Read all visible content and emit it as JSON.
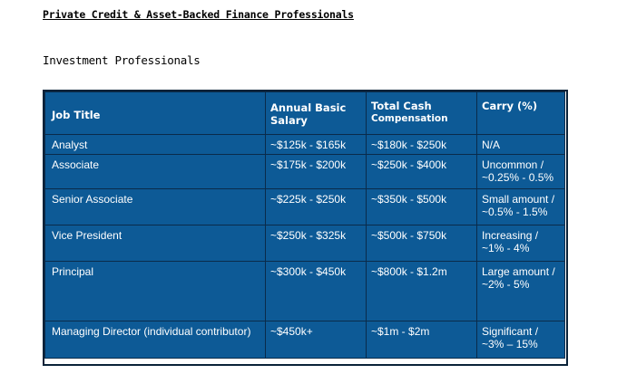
{
  "document": {
    "title": "Private Credit & Asset-Backed Finance Professionals",
    "section_heading": "Investment Professionals"
  },
  "table": {
    "headers": {
      "job_title": "Job Title",
      "annual_basic_salary": "Annual Basic Salary",
      "total_cash_line1": "Total Cash",
      "total_cash_line2": "Compensation",
      "carry": "Carry (%)"
    },
    "rows": [
      {
        "job": "Analyst",
        "salary": "~$125k - $165k",
        "total_cash": "~$180k - $250k",
        "carry_line1": "N/A",
        "carry_line2": ""
      },
      {
        "job": "Associate",
        "salary": "~$175k - $200k",
        "total_cash": "~$250k - $400k",
        "carry_line1": "Uncommon /",
        "carry_line2": "~0.25% - 0.5%"
      },
      {
        "job": "Senior Associate",
        "salary": "~$225k - $250k",
        "total_cash": "~$350k - $500k",
        "carry_line1": "Small amount /",
        "carry_line2": "~0.5% - 1.5%"
      },
      {
        "job": "Vice President",
        "salary": "~$250k - $325k",
        "total_cash": "~$500k - $750k",
        "carry_line1": "Increasing /",
        "carry_line2": "~1% - 4%"
      },
      {
        "job": "Principal",
        "salary": "~$300k - $450k",
        "total_cash": "~$800k - $1.2m",
        "carry_line1": "Large amount /",
        "carry_line2": "~2% - 5%"
      },
      {
        "job": "Managing Director (individual contributor)",
        "salary": "~$450k+",
        "total_cash": "~$1m - $2m",
        "carry_line1": "Significant /",
        "carry_line2": "~3% – 15%"
      }
    ]
  }
}
